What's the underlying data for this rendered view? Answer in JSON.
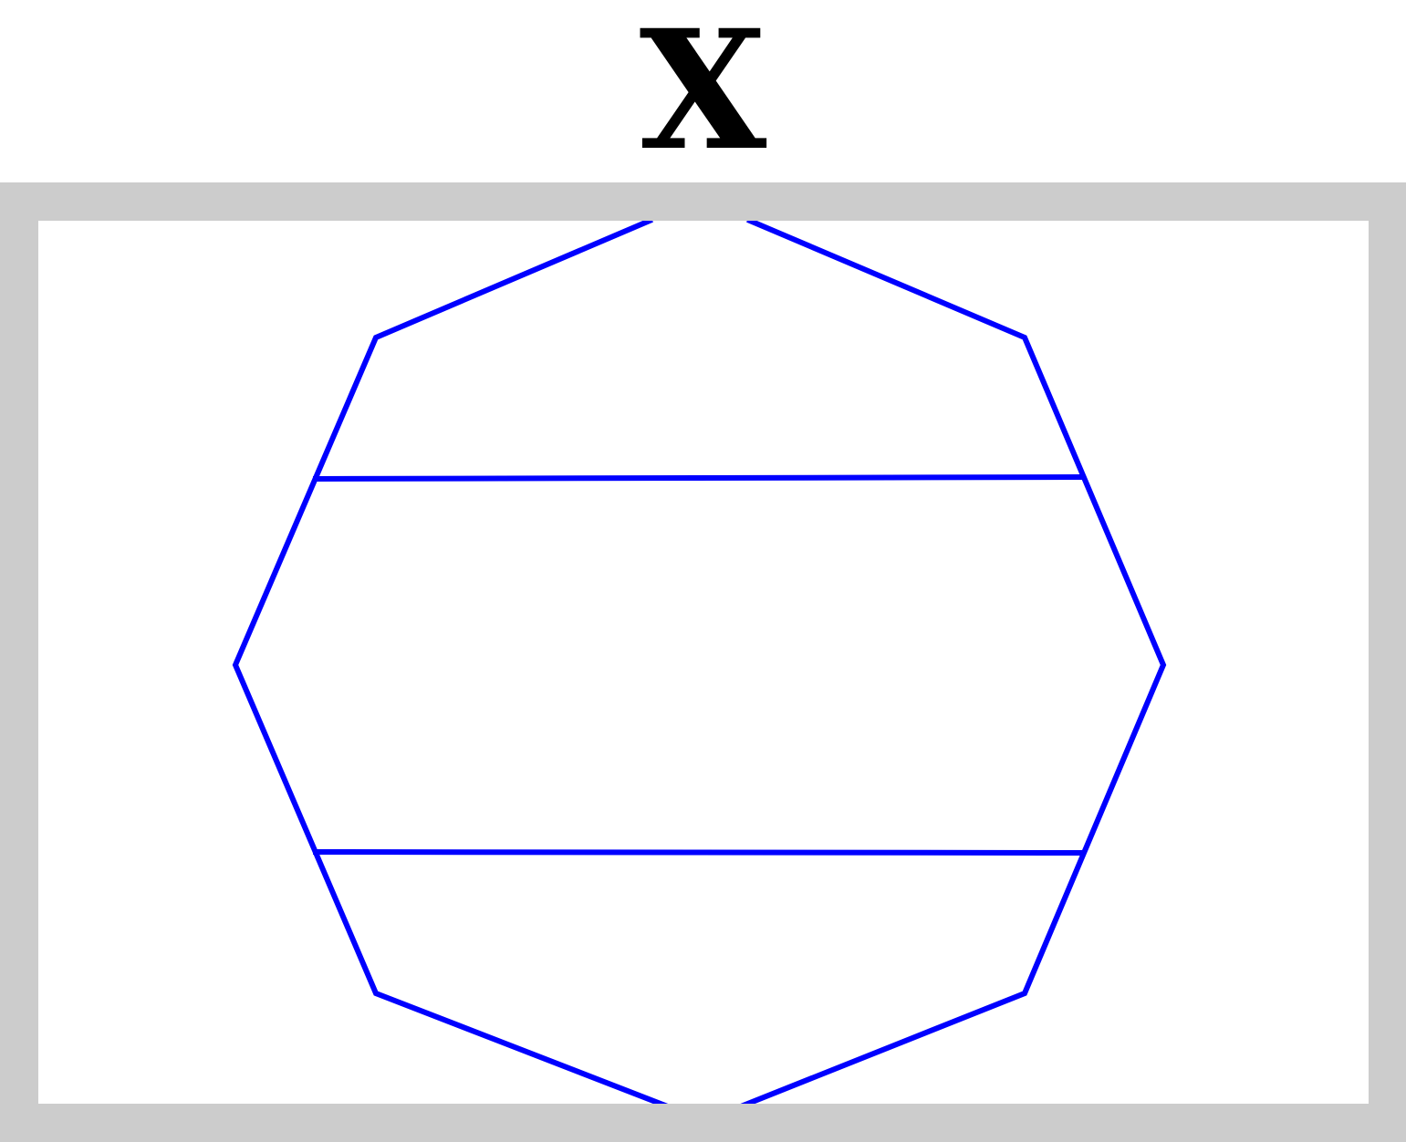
{
  "title": "X",
  "colors": {
    "frame": "#cccccc",
    "canvas": "#ffffff",
    "stroke": "#0000ff",
    "title": "#000000"
  },
  "diagram": {
    "shape": "octagon",
    "crossbars": 2
  }
}
